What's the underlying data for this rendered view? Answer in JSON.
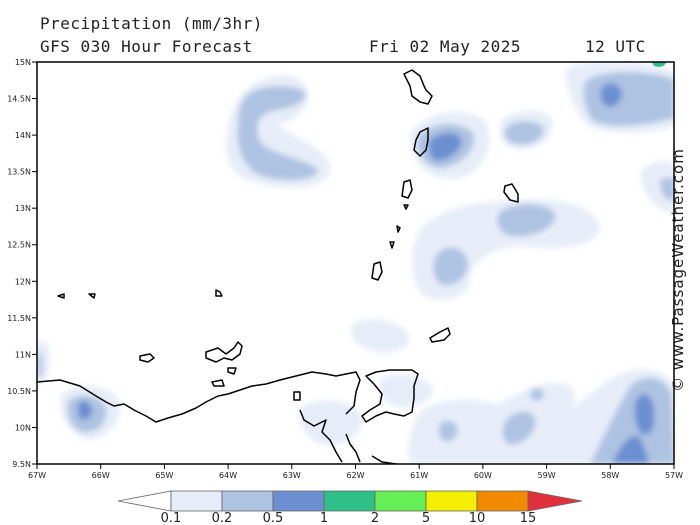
{
  "header": {
    "line1": "Precipitation (mm/3hr)",
    "line2": "GFS 030 Hour Forecast",
    "date": "Fri 02 May 2025",
    "time": "12 UTC"
  },
  "credit": "© www.PassageWeather.com",
  "map": {
    "lon_range": [
      -67,
      -57
    ],
    "lat_range": [
      9.5,
      15
    ],
    "lon_labels": [
      "67W",
      "66W",
      "65W",
      "64W",
      "63W",
      "62W",
      "61W",
      "60W",
      "59W",
      "58W",
      "57W"
    ],
    "lat_labels": [
      "15N",
      "14.5N",
      "14N",
      "13.5N",
      "13N",
      "12.5N",
      "12N",
      "11.5N",
      "11N",
      "10.5N",
      "10N",
      "9.5N"
    ]
  },
  "legend": {
    "labels": [
      "0.1",
      "0.2",
      "0.5",
      "1",
      "2",
      "5",
      "10",
      "15"
    ],
    "colors": [
      "#ffffff",
      "#e6edf8",
      "#aec2e2",
      "#6c8fd1",
      "#2fc08a",
      "#66ee55",
      "#f4ee00",
      "#f28a00",
      "#e0303c"
    ]
  }
}
